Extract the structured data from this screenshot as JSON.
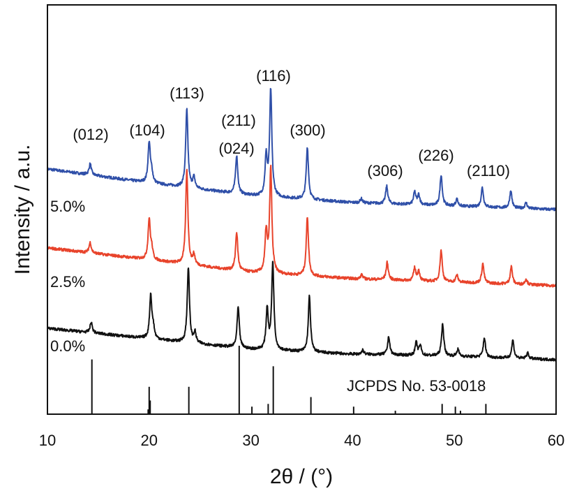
{
  "chart_data": {
    "type": "line",
    "title": "",
    "xlabel": "2θ / (°)",
    "ylabel": "Intensity / a.u.",
    "xlim": [
      10,
      60
    ],
    "ylim": [
      0,
      586
    ],
    "xticks": [
      "10",
      "20",
      "30",
      "40",
      "50",
      "60"
    ],
    "grid": false,
    "series": [
      {
        "name": "5.0%",
        "color": "#2f4fa8",
        "baseline": [
          [
            10,
            351
          ],
          [
            20,
            331
          ],
          [
            30,
            313
          ],
          [
            40,
            303
          ],
          [
            50,
            298
          ],
          [
            60,
            293
          ]
        ],
        "peaks": [
          [
            14.2,
            16
          ],
          [
            20.0,
            58
          ],
          [
            20.25,
            14
          ],
          [
            23.7,
            112
          ],
          [
            24.4,
            15
          ],
          [
            28.6,
            55
          ],
          [
            31.5,
            55
          ],
          [
            31.95,
            152
          ],
          [
            35.55,
            75
          ],
          [
            40.85,
            6
          ],
          [
            43.35,
            25
          ],
          [
            46.1,
            18
          ],
          [
            46.5,
            14
          ],
          [
            48.7,
            44
          ],
          [
            50.25,
            10
          ],
          [
            52.75,
            28
          ],
          [
            55.55,
            25
          ],
          [
            57.05,
            8
          ]
        ]
      },
      {
        "name": "2.5%",
        "color": "#e8432b",
        "baseline": [
          [
            10,
            238
          ],
          [
            20,
            221
          ],
          [
            30,
            203
          ],
          [
            40,
            194
          ],
          [
            50,
            189
          ],
          [
            60,
            184
          ]
        ],
        "peaks": [
          [
            14.2,
            15
          ],
          [
            20.0,
            58
          ],
          [
            20.25,
            14
          ],
          [
            23.7,
            135
          ],
          [
            24.4,
            14
          ],
          [
            28.6,
            55
          ],
          [
            31.5,
            58
          ],
          [
            31.95,
            150
          ],
          [
            35.55,
            85
          ],
          [
            40.9,
            6
          ],
          [
            43.4,
            25
          ],
          [
            46.1,
            18
          ],
          [
            46.5,
            14
          ],
          [
            48.7,
            45
          ],
          [
            50.25,
            10
          ],
          [
            52.8,
            28
          ],
          [
            55.6,
            25
          ],
          [
            57.05,
            8
          ]
        ]
      },
      {
        "name": "0.0%",
        "color": "#111111",
        "baseline": [
          [
            10,
            123
          ],
          [
            20,
            108
          ],
          [
            30,
            93
          ],
          [
            40,
            86
          ],
          [
            50,
            83
          ],
          [
            60,
            78
          ]
        ],
        "peaks": [
          [
            14.3,
            15
          ],
          [
            20.15,
            62
          ],
          [
            20.4,
            15
          ],
          [
            23.85,
            108
          ],
          [
            24.5,
            15
          ],
          [
            28.75,
            58
          ],
          [
            31.6,
            58
          ],
          [
            32.15,
            125
          ],
          [
            35.75,
            80
          ],
          [
            41.0,
            6
          ],
          [
            43.55,
            26
          ],
          [
            46.25,
            18
          ],
          [
            46.65,
            14
          ],
          [
            48.85,
            46
          ],
          [
            50.35,
            10
          ],
          [
            52.95,
            28
          ],
          [
            55.75,
            26
          ],
          [
            57.2,
            8
          ]
        ]
      }
    ],
    "reference": {
      "label": "JCPDS No. 53-0018",
      "lines": [
        [
          14.37,
          80
        ],
        [
          19.9,
          7
        ],
        [
          20.0,
          40
        ],
        [
          20.1,
          20
        ],
        [
          23.9,
          40
        ],
        [
          28.85,
          100
        ],
        [
          30.1,
          11
        ],
        [
          31.7,
          15
        ],
        [
          32.2,
          70
        ],
        [
          35.9,
          25
        ],
        [
          40.1,
          11
        ],
        [
          44.2,
          5
        ],
        [
          48.8,
          15
        ],
        [
          50.1,
          11
        ],
        [
          50.6,
          5
        ],
        [
          53.1,
          15
        ]
      ]
    },
    "annotations": [
      {
        "text": "(012)",
        "x": 14.2
      },
      {
        "text": "(104)",
        "x": 20.0
      },
      {
        "text": "(113)",
        "x": 23.7
      },
      {
        "text": "(024)",
        "x": 24.4
      },
      {
        "text": "(211)",
        "x": 28.6
      },
      {
        "text": "(116)",
        "x": 31.95
      },
      {
        "text": "(300)",
        "x": 35.55
      },
      {
        "text": "(306)",
        "x": 43.35
      },
      {
        "text": "(226)",
        "x": 48.7
      },
      {
        "text": "(2110)",
        "x": 52.75
      }
    ]
  }
}
